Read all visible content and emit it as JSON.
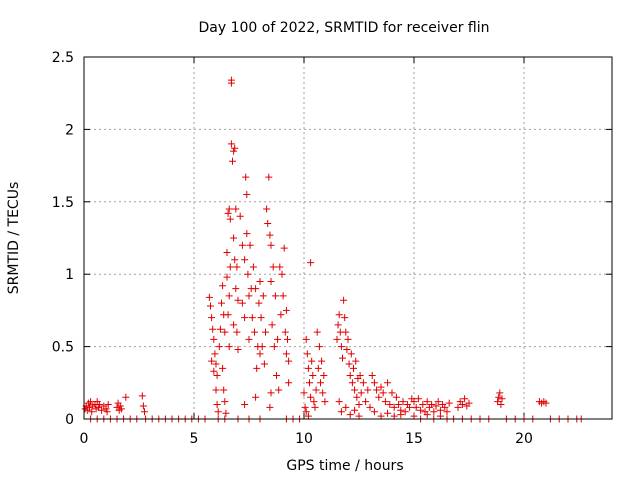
{
  "chart_data": {
    "type": "scatter",
    "title": "Day 100 of 2022, SRMTID for receiver flin",
    "xlabel": "GPS time / hours",
    "ylabel": "SRMTID / TECUs",
    "xlim": [
      0,
      24
    ],
    "ylim": [
      0,
      2.5
    ],
    "xticks": [
      0,
      5,
      10,
      15,
      20
    ],
    "xtick_labels": [
      "0",
      "5",
      "10",
      "15",
      "20"
    ],
    "yticks": [
      0,
      0.5,
      1,
      1.5,
      2,
      2.5
    ],
    "ytick_labels": [
      "0",
      "0.5",
      "1",
      "1.5",
      "2",
      "2.5"
    ],
    "grid": true,
    "marker": "+",
    "color": "#e00000",
    "series": [
      {
        "name": "SRMTID",
        "points": [
          [
            0.05,
            0.07
          ],
          [
            0.1,
            0.09
          ],
          [
            0.15,
            0.06
          ],
          [
            0.2,
            0.11
          ],
          [
            0.25,
            0.08
          ],
          [
            0.3,
            0.12
          ],
          [
            0.35,
            0.05
          ],
          [
            0.4,
            0.09
          ],
          [
            0.5,
            0.1
          ],
          [
            0.55,
            0.07
          ],
          [
            0.6,
            0.12
          ],
          [
            0.65,
            0.08
          ],
          [
            0.7,
            0.1
          ],
          [
            0.8,
            0.06
          ],
          [
            0.9,
            0.09
          ],
          [
            1.0,
            0.07
          ],
          [
            1.05,
            0.05
          ],
          [
            1.1,
            0.1
          ],
          [
            1.5,
            0.08
          ],
          [
            1.55,
            0.11
          ],
          [
            1.6,
            0.06
          ],
          [
            1.65,
            0.09
          ],
          [
            1.7,
            0.07
          ],
          [
            1.9,
            0.15
          ],
          [
            2.65,
            0.16
          ],
          [
            2.7,
            0.09
          ],
          [
            2.75,
            0.05
          ],
          [
            0.3,
            0.0
          ],
          [
            0.6,
            0.0
          ],
          [
            0.9,
            0.0
          ],
          [
            1.2,
            0.0
          ],
          [
            1.5,
            0.0
          ],
          [
            1.8,
            0.0
          ],
          [
            2.1,
            0.0
          ],
          [
            2.4,
            0.0
          ],
          [
            2.8,
            0.0
          ],
          [
            3.1,
            0.0
          ],
          [
            3.4,
            0.0
          ],
          [
            3.7,
            0.0
          ],
          [
            4.0,
            0.0
          ],
          [
            4.3,
            0.0
          ],
          [
            4.6,
            0.0
          ],
          [
            4.9,
            0.0
          ],
          [
            5.2,
            0.0
          ],
          [
            5.5,
            0.0
          ],
          [
            6.1,
            0.0
          ],
          [
            6.4,
            0.0
          ],
          [
            7.0,
            0.0
          ],
          [
            7.5,
            0.0
          ],
          [
            8.0,
            0.0
          ],
          [
            9.2,
            0.0
          ],
          [
            9.5,
            0.0
          ],
          [
            9.8,
            0.0
          ],
          [
            5.7,
            0.84
          ],
          [
            5.75,
            0.78
          ],
          [
            5.8,
            0.7
          ],
          [
            5.85,
            0.62
          ],
          [
            5.9,
            0.55
          ],
          [
            5.95,
            0.45
          ],
          [
            6.0,
            0.38
          ],
          [
            6.05,
            0.3
          ],
          [
            5.8,
            0.4
          ],
          [
            5.9,
            0.33
          ],
          [
            6.0,
            0.2
          ],
          [
            6.05,
            0.1
          ],
          [
            6.1,
            0.05
          ],
          [
            6.15,
            0.5
          ],
          [
            6.2,
            0.62
          ],
          [
            6.25,
            0.8
          ],
          [
            6.3,
            0.92
          ],
          [
            6.35,
            0.72
          ],
          [
            6.4,
            0.6
          ],
          [
            6.3,
            0.35
          ],
          [
            6.35,
            0.2
          ],
          [
            6.4,
            0.12
          ],
          [
            6.45,
            0.04
          ],
          [
            6.5,
            1.15
          ],
          [
            6.5,
            0.98
          ],
          [
            6.55,
            1.42
          ],
          [
            6.55,
            0.72
          ],
          [
            6.6,
            1.45
          ],
          [
            6.6,
            0.85
          ],
          [
            6.6,
            0.5
          ],
          [
            6.65,
            1.38
          ],
          [
            6.65,
            1.05
          ],
          [
            6.7,
            2.34
          ],
          [
            6.7,
            2.32
          ],
          [
            6.7,
            1.9
          ],
          [
            6.75,
            1.78
          ],
          [
            6.8,
            1.85
          ],
          [
            6.8,
            1.25
          ],
          [
            6.8,
            0.65
          ],
          [
            6.85,
            1.87
          ],
          [
            6.85,
            1.1
          ],
          [
            6.9,
            1.45
          ],
          [
            6.9,
            0.9
          ],
          [
            6.95,
            1.05
          ],
          [
            6.95,
            0.6
          ],
          [
            7.0,
            0.82
          ],
          [
            7.0,
            0.48
          ],
          [
            7.1,
            1.4
          ],
          [
            7.2,
            1.2
          ],
          [
            7.2,
            0.8
          ],
          [
            7.3,
            1.1
          ],
          [
            7.3,
            0.7
          ],
          [
            7.35,
            1.67
          ],
          [
            7.4,
            1.55
          ],
          [
            7.4,
            1.28
          ],
          [
            7.45,
            1.0
          ],
          [
            7.5,
            0.85
          ],
          [
            7.5,
            0.55
          ],
          [
            7.55,
            1.2
          ],
          [
            7.6,
            0.9
          ],
          [
            7.65,
            0.7
          ],
          [
            7.7,
            1.05
          ],
          [
            7.75,
            0.6
          ],
          [
            7.8,
            0.9
          ],
          [
            7.85,
            0.35
          ],
          [
            7.9,
            0.5
          ],
          [
            7.95,
            0.8
          ],
          [
            8.0,
            0.95
          ],
          [
            8.0,
            0.45
          ],
          [
            8.05,
            0.7
          ],
          [
            8.1,
            0.5
          ],
          [
            8.15,
            0.85
          ],
          [
            8.2,
            0.38
          ],
          [
            8.25,
            0.6
          ],
          [
            8.3,
            1.45
          ],
          [
            8.35,
            1.35
          ],
          [
            8.4,
            1.67
          ],
          [
            8.45,
            1.27
          ],
          [
            8.5,
            1.2
          ],
          [
            8.5,
            0.95
          ],
          [
            8.55,
            0.65
          ],
          [
            8.6,
            1.05
          ],
          [
            8.65,
            0.5
          ],
          [
            8.7,
            0.85
          ],
          [
            8.75,
            0.3
          ],
          [
            8.8,
            0.55
          ],
          [
            8.85,
            0.2
          ],
          [
            8.9,
            1.05
          ],
          [
            8.95,
            0.72
          ],
          [
            9.0,
            1.0
          ],
          [
            9.05,
            0.85
          ],
          [
            9.1,
            1.18
          ],
          [
            9.15,
            0.6
          ],
          [
            9.2,
            0.75
          ],
          [
            9.2,
            0.45
          ],
          [
            9.25,
            0.55
          ],
          [
            9.3,
            0.4
          ],
          [
            9.3,
            0.25
          ],
          [
            8.45,
            0.08
          ],
          [
            8.5,
            0.18
          ],
          [
            7.8,
            0.15
          ],
          [
            7.3,
            0.1
          ],
          [
            10.1,
            0.55
          ],
          [
            10.15,
            0.45
          ],
          [
            10.2,
            0.35
          ],
          [
            10.25,
            0.25
          ],
          [
            10.3,
            1.08
          ],
          [
            10.3,
            0.15
          ],
          [
            10.35,
            0.4
          ],
          [
            10.4,
            0.3
          ],
          [
            10.45,
            0.12
          ],
          [
            10.5,
            0.08
          ],
          [
            10.55,
            0.2
          ],
          [
            10.6,
            0.6
          ],
          [
            10.65,
            0.35
          ],
          [
            10.7,
            0.5
          ],
          [
            10.75,
            0.25
          ],
          [
            10.8,
            0.4
          ],
          [
            10.85,
            0.18
          ],
          [
            10.9,
            0.3
          ],
          [
            10.95,
            0.12
          ],
          [
            10.0,
            0.18
          ],
          [
            10.05,
            0.08
          ],
          [
            10.1,
            0.05
          ],
          [
            10.2,
            0.02
          ],
          [
            11.5,
            0.55
          ],
          [
            11.55,
            0.65
          ],
          [
            11.6,
            0.72
          ],
          [
            11.65,
            0.6
          ],
          [
            11.7,
            0.5
          ],
          [
            11.75,
            0.42
          ],
          [
            11.8,
            0.82
          ],
          [
            11.85,
            0.7
          ],
          [
            11.9,
            0.6
          ],
          [
            11.95,
            0.48
          ],
          [
            12.0,
            0.55
          ],
          [
            12.05,
            0.38
          ],
          [
            12.1,
            0.3
          ],
          [
            12.15,
            0.45
          ],
          [
            12.2,
            0.25
          ],
          [
            12.25,
            0.35
          ],
          [
            12.3,
            0.2
          ],
          [
            12.35,
            0.4
          ],
          [
            12.4,
            0.15
          ],
          [
            12.45,
            0.28
          ],
          [
            12.5,
            0.1
          ],
          [
            12.55,
            0.3
          ],
          [
            12.6,
            0.18
          ],
          [
            12.7,
            0.25
          ],
          [
            12.8,
            0.12
          ],
          [
            12.9,
            0.2
          ],
          [
            13.0,
            0.08
          ],
          [
            11.6,
            0.12
          ],
          [
            11.7,
            0.05
          ],
          [
            11.9,
            0.08
          ],
          [
            12.1,
            0.03
          ],
          [
            12.3,
            0.06
          ],
          [
            12.5,
            0.02
          ],
          [
            13.1,
            0.3
          ],
          [
            13.2,
            0.25
          ],
          [
            13.3,
            0.2
          ],
          [
            13.4,
            0.15
          ],
          [
            13.5,
            0.22
          ],
          [
            13.6,
            0.18
          ],
          [
            13.7,
            0.12
          ],
          [
            13.8,
            0.25
          ],
          [
            13.9,
            0.1
          ],
          [
            14.0,
            0.18
          ],
          [
            14.1,
            0.08
          ],
          [
            14.2,
            0.15
          ],
          [
            14.3,
            0.1
          ],
          [
            14.4,
            0.06
          ],
          [
            14.5,
            0.12
          ],
          [
            14.6,
            0.05
          ],
          [
            14.7,
            0.1
          ],
          [
            14.8,
            0.08
          ],
          [
            14.9,
            0.14
          ],
          [
            13.2,
            0.05
          ],
          [
            13.5,
            0.02
          ],
          [
            13.8,
            0.04
          ],
          [
            14.1,
            0.02
          ],
          [
            14.4,
            0.03
          ],
          [
            15.0,
            0.12
          ],
          [
            15.1,
            0.08
          ],
          [
            15.2,
            0.14
          ],
          [
            15.3,
            0.06
          ],
          [
            15.4,
            0.1
          ],
          [
            15.5,
            0.05
          ],
          [
            15.6,
            0.12
          ],
          [
            15.7,
            0.08
          ],
          [
            15.8,
            0.1
          ],
          [
            15.9,
            0.05
          ],
          [
            16.0,
            0.09
          ],
          [
            16.1,
            0.12
          ],
          [
            16.2,
            0.06
          ],
          [
            16.3,
            0.1
          ],
          [
            16.4,
            0.08
          ],
          [
            16.5,
            0.05
          ],
          [
            16.6,
            0.11
          ],
          [
            15.0,
            0.02
          ],
          [
            15.3,
            0.0
          ],
          [
            15.6,
            0.03
          ],
          [
            15.9,
            0.0
          ],
          [
            16.2,
            0.02
          ],
          [
            16.5,
            0.0
          ],
          [
            16.8,
            0.0
          ],
          [
            17.0,
            0.08
          ],
          [
            17.1,
            0.12
          ],
          [
            17.2,
            0.1
          ],
          [
            17.3,
            0.14
          ],
          [
            17.4,
            0.09
          ],
          [
            17.5,
            0.11
          ],
          [
            17.2,
            0.0
          ],
          [
            17.6,
            0.0
          ],
          [
            18.0,
            0.0
          ],
          [
            18.4,
            0.0
          ],
          [
            18.8,
            0.12
          ],
          [
            18.85,
            0.15
          ],
          [
            18.9,
            0.18
          ],
          [
            18.95,
            0.1
          ],
          [
            19.0,
            0.14
          ],
          [
            19.2,
            0.0
          ],
          [
            19.6,
            0.0
          ],
          [
            20.0,
            0.0
          ],
          [
            20.4,
            0.0
          ],
          [
            20.7,
            0.12
          ],
          [
            20.8,
            0.11
          ],
          [
            20.9,
            0.12
          ],
          [
            21.0,
            0.11
          ],
          [
            21.2,
            0.0
          ],
          [
            21.6,
            0.0
          ],
          [
            22.0,
            0.0
          ],
          [
            22.4,
            0.0
          ],
          [
            22.6,
            0.0
          ]
        ]
      }
    ]
  }
}
